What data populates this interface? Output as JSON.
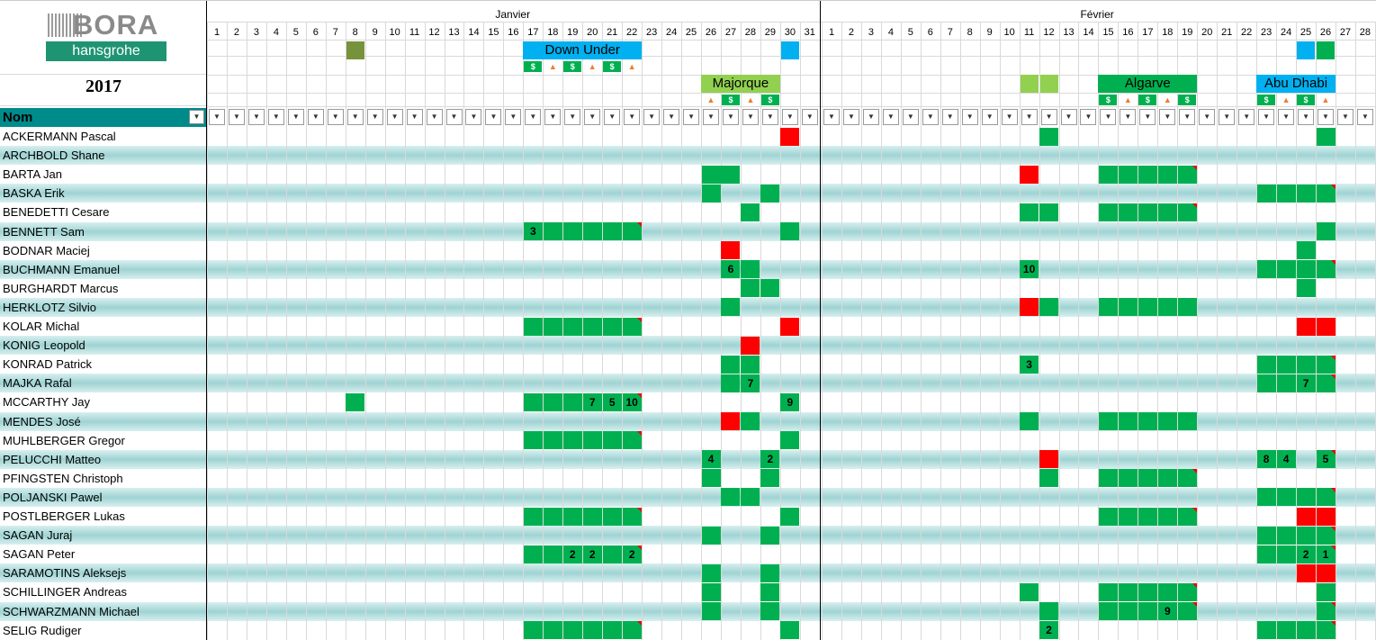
{
  "header": {
    "brand": "BORA",
    "sub_brand": "hansgrohe",
    "year": "2017",
    "name_column": "Nom",
    "filter_icon": "filter-dropdown-icon"
  },
  "months": [
    {
      "label": "Janvier",
      "days": 31,
      "start_x": 230
    },
    {
      "label": "Février",
      "days": 28,
      "start_x": 913
    }
  ],
  "events": [
    {
      "label": "Down Under",
      "month": 0,
      "from": 17,
      "to": 22,
      "color": "#00b0f0",
      "row": "top"
    },
    {
      "label": "Majorque",
      "month": 0,
      "from": 26,
      "to": 29,
      "color": "#92d050",
      "row": "bottom"
    },
    {
      "label": "Algarve",
      "month": 1,
      "from": 15,
      "to": 19,
      "color": "#00b050",
      "row": "bottom"
    },
    {
      "label": "Abu Dhabi",
      "month": 1,
      "from": 23,
      "to": 26,
      "color": "#00b0f0",
      "row": "bottom"
    }
  ],
  "colors": {
    "green": "#00b050",
    "red": "#ff0000",
    "header_teal": "#008b8b",
    "row_stripe": "#bfe4e4"
  },
  "riders": [
    {
      "name": "ACKERMANN Pascal"
    },
    {
      "name": "ARCHBOLD Shane"
    },
    {
      "name": "BARTA Jan"
    },
    {
      "name": "BASKA Erik"
    },
    {
      "name": "BENEDETTI Cesare"
    },
    {
      "name": "BENNETT Sam"
    },
    {
      "name": "BODNAR Maciej"
    },
    {
      "name": "BUCHMANN Emanuel"
    },
    {
      "name": "BURGHARDT Marcus"
    },
    {
      "name": "HERKLOTZ Silvio"
    },
    {
      "name": "KOLAR Michal"
    },
    {
      "name": "KONIG Leopold"
    },
    {
      "name": "KONRAD Patrick"
    },
    {
      "name": "MAJKA Rafal"
    },
    {
      "name": "MCCARTHY Jay"
    },
    {
      "name": "MENDES José"
    },
    {
      "name": "MUHLBERGER Gregor"
    },
    {
      "name": "PELUCCHI Matteo"
    },
    {
      "name": "PFINGSTEN Christoph"
    },
    {
      "name": "POLJANSKI Pawel"
    },
    {
      "name": "POSTLBERGER Lukas"
    },
    {
      "name": "SAGAN Juraj"
    },
    {
      "name": "SAGAN Peter"
    },
    {
      "name": "SARAMOTINS Aleksejs"
    },
    {
      "name": "SCHILLINGER Andreas"
    },
    {
      "name": "SCHWARZMANN Michael"
    },
    {
      "name": "SELIG Rudiger"
    }
  ],
  "cells": [
    [
      0,
      0,
      30,
      "r",
      ""
    ],
    [
      0,
      1,
      12,
      "g",
      ""
    ],
    [
      0,
      1,
      26,
      "g",
      ""
    ],
    [
      2,
      0,
      26,
      "g",
      ""
    ],
    [
      2,
      0,
      27,
      "g",
      ""
    ],
    [
      2,
      1,
      11,
      "r",
      ""
    ],
    [
      2,
      1,
      15,
      "g",
      ""
    ],
    [
      2,
      1,
      16,
      "g",
      ""
    ],
    [
      2,
      1,
      17,
      "g",
      ""
    ],
    [
      2,
      1,
      18,
      "g",
      ""
    ],
    [
      2,
      1,
      19,
      "gf",
      ""
    ],
    [
      3,
      0,
      26,
      "g",
      ""
    ],
    [
      3,
      0,
      29,
      "g",
      ""
    ],
    [
      3,
      1,
      23,
      "g",
      ""
    ],
    [
      3,
      1,
      24,
      "g",
      ""
    ],
    [
      3,
      1,
      25,
      "g",
      ""
    ],
    [
      3,
      1,
      26,
      "gf",
      ""
    ],
    [
      4,
      0,
      28,
      "g",
      ""
    ],
    [
      4,
      1,
      11,
      "g",
      ""
    ],
    [
      4,
      1,
      12,
      "g",
      ""
    ],
    [
      4,
      1,
      15,
      "g",
      ""
    ],
    [
      4,
      1,
      16,
      "g",
      ""
    ],
    [
      4,
      1,
      17,
      "g",
      ""
    ],
    [
      4,
      1,
      18,
      "g",
      ""
    ],
    [
      4,
      1,
      19,
      "gf",
      ""
    ],
    [
      5,
      0,
      17,
      "g",
      "3"
    ],
    [
      5,
      0,
      18,
      "g",
      ""
    ],
    [
      5,
      0,
      19,
      "g",
      ""
    ],
    [
      5,
      0,
      20,
      "g",
      ""
    ],
    [
      5,
      0,
      21,
      "g",
      ""
    ],
    [
      5,
      0,
      22,
      "gf",
      ""
    ],
    [
      5,
      0,
      30,
      "g",
      ""
    ],
    [
      5,
      1,
      26,
      "g",
      ""
    ],
    [
      6,
      0,
      27,
      "r",
      ""
    ],
    [
      6,
      1,
      25,
      "g",
      ""
    ],
    [
      7,
      0,
      27,
      "g",
      "6"
    ],
    [
      7,
      0,
      28,
      "g",
      ""
    ],
    [
      7,
      1,
      11,
      "g",
      "10"
    ],
    [
      7,
      1,
      23,
      "g",
      ""
    ],
    [
      7,
      1,
      24,
      "g",
      ""
    ],
    [
      7,
      1,
      25,
      "g",
      ""
    ],
    [
      7,
      1,
      26,
      "gf",
      ""
    ],
    [
      8,
      0,
      28,
      "g",
      ""
    ],
    [
      8,
      0,
      29,
      "g",
      ""
    ],
    [
      8,
      1,
      25,
      "g",
      ""
    ],
    [
      9,
      0,
      27,
      "g",
      ""
    ],
    [
      9,
      1,
      11,
      "r",
      ""
    ],
    [
      9,
      1,
      12,
      "g",
      ""
    ],
    [
      9,
      1,
      15,
      "g",
      ""
    ],
    [
      9,
      1,
      16,
      "g",
      ""
    ],
    [
      9,
      1,
      17,
      "g",
      ""
    ],
    [
      9,
      1,
      18,
      "g",
      ""
    ],
    [
      9,
      1,
      19,
      "g",
      ""
    ],
    [
      10,
      0,
      17,
      "g",
      ""
    ],
    [
      10,
      0,
      18,
      "g",
      ""
    ],
    [
      10,
      0,
      19,
      "g",
      ""
    ],
    [
      10,
      0,
      20,
      "g",
      ""
    ],
    [
      10,
      0,
      21,
      "g",
      ""
    ],
    [
      10,
      0,
      22,
      "gf",
      ""
    ],
    [
      10,
      0,
      30,
      "r",
      ""
    ],
    [
      10,
      1,
      25,
      "r",
      ""
    ],
    [
      10,
      1,
      26,
      "r",
      ""
    ],
    [
      11,
      0,
      28,
      "r",
      ""
    ],
    [
      12,
      0,
      27,
      "g",
      ""
    ],
    [
      12,
      0,
      28,
      "g",
      ""
    ],
    [
      12,
      1,
      11,
      "g",
      "3"
    ],
    [
      12,
      1,
      23,
      "g",
      ""
    ],
    [
      12,
      1,
      24,
      "g",
      ""
    ],
    [
      12,
      1,
      25,
      "g",
      ""
    ],
    [
      12,
      1,
      26,
      "gf",
      ""
    ],
    [
      13,
      0,
      27,
      "g",
      ""
    ],
    [
      13,
      0,
      28,
      "g",
      "7"
    ],
    [
      13,
      1,
      23,
      "g",
      ""
    ],
    [
      13,
      1,
      24,
      "g",
      ""
    ],
    [
      13,
      1,
      25,
      "g",
      "7"
    ],
    [
      13,
      1,
      26,
      "gf",
      ""
    ],
    [
      14,
      0,
      8,
      "g",
      ""
    ],
    [
      14,
      0,
      17,
      "g",
      ""
    ],
    [
      14,
      0,
      18,
      "g",
      ""
    ],
    [
      14,
      0,
      19,
      "g",
      ""
    ],
    [
      14,
      0,
      20,
      "g",
      "7"
    ],
    [
      14,
      0,
      21,
      "g",
      "5"
    ],
    [
      14,
      0,
      22,
      "gf",
      "10"
    ],
    [
      14,
      0,
      30,
      "g",
      "9"
    ],
    [
      15,
      0,
      27,
      "r",
      ""
    ],
    [
      15,
      0,
      28,
      "g",
      ""
    ],
    [
      15,
      1,
      11,
      "g",
      ""
    ],
    [
      15,
      1,
      15,
      "g",
      ""
    ],
    [
      15,
      1,
      16,
      "g",
      ""
    ],
    [
      15,
      1,
      17,
      "g",
      ""
    ],
    [
      15,
      1,
      18,
      "g",
      ""
    ],
    [
      15,
      1,
      19,
      "g",
      ""
    ],
    [
      16,
      0,
      17,
      "g",
      ""
    ],
    [
      16,
      0,
      18,
      "g",
      ""
    ],
    [
      16,
      0,
      19,
      "g",
      ""
    ],
    [
      16,
      0,
      20,
      "g",
      ""
    ],
    [
      16,
      0,
      21,
      "g",
      ""
    ],
    [
      16,
      0,
      22,
      "gf",
      ""
    ],
    [
      16,
      0,
      30,
      "g",
      ""
    ],
    [
      17,
      0,
      26,
      "g",
      "4"
    ],
    [
      17,
      0,
      29,
      "g",
      "2"
    ],
    [
      17,
      1,
      12,
      "r",
      ""
    ],
    [
      17,
      1,
      23,
      "g",
      "8"
    ],
    [
      17,
      1,
      24,
      "g",
      "4"
    ],
    [
      17,
      1,
      26,
      "gf",
      "5"
    ],
    [
      18,
      0,
      26,
      "g",
      ""
    ],
    [
      18,
      0,
      29,
      "g",
      ""
    ],
    [
      18,
      1,
      12,
      "g",
      ""
    ],
    [
      18,
      1,
      15,
      "g",
      ""
    ],
    [
      18,
      1,
      16,
      "g",
      ""
    ],
    [
      18,
      1,
      17,
      "g",
      ""
    ],
    [
      18,
      1,
      18,
      "g",
      ""
    ],
    [
      18,
      1,
      19,
      "gf",
      ""
    ],
    [
      19,
      0,
      27,
      "g",
      ""
    ],
    [
      19,
      0,
      28,
      "g",
      ""
    ],
    [
      19,
      1,
      23,
      "g",
      ""
    ],
    [
      19,
      1,
      24,
      "g",
      ""
    ],
    [
      19,
      1,
      25,
      "g",
      ""
    ],
    [
      19,
      1,
      26,
      "gf",
      ""
    ],
    [
      20,
      0,
      17,
      "g",
      ""
    ],
    [
      20,
      0,
      18,
      "g",
      ""
    ],
    [
      20,
      0,
      19,
      "g",
      ""
    ],
    [
      20,
      0,
      20,
      "g",
      ""
    ],
    [
      20,
      0,
      21,
      "g",
      ""
    ],
    [
      20,
      0,
      22,
      "gf",
      ""
    ],
    [
      20,
      0,
      30,
      "g",
      ""
    ],
    [
      20,
      1,
      15,
      "g",
      ""
    ],
    [
      20,
      1,
      16,
      "g",
      ""
    ],
    [
      20,
      1,
      17,
      "g",
      ""
    ],
    [
      20,
      1,
      18,
      "g",
      ""
    ],
    [
      20,
      1,
      19,
      "gf",
      ""
    ],
    [
      20,
      1,
      25,
      "r",
      ""
    ],
    [
      20,
      1,
      26,
      "r",
      ""
    ],
    [
      21,
      0,
      26,
      "g",
      ""
    ],
    [
      21,
      0,
      29,
      "g",
      ""
    ],
    [
      21,
      1,
      23,
      "g",
      ""
    ],
    [
      21,
      1,
      24,
      "g",
      ""
    ],
    [
      21,
      1,
      25,
      "g",
      ""
    ],
    [
      21,
      1,
      26,
      "gf",
      ""
    ],
    [
      22,
      0,
      17,
      "g",
      ""
    ],
    [
      22,
      0,
      18,
      "g",
      ""
    ],
    [
      22,
      0,
      19,
      "g",
      "2"
    ],
    [
      22,
      0,
      20,
      "g",
      "2"
    ],
    [
      22,
      0,
      21,
      "g",
      ""
    ],
    [
      22,
      0,
      22,
      "gf",
      "2"
    ],
    [
      22,
      1,
      23,
      "g",
      ""
    ],
    [
      22,
      1,
      24,
      "g",
      ""
    ],
    [
      22,
      1,
      25,
      "g",
      "2"
    ],
    [
      22,
      1,
      26,
      "gf",
      "1"
    ],
    [
      23,
      0,
      26,
      "g",
      ""
    ],
    [
      23,
      0,
      29,
      "g",
      ""
    ],
    [
      23,
      1,
      25,
      "r",
      ""
    ],
    [
      23,
      1,
      26,
      "r",
      ""
    ],
    [
      24,
      0,
      26,
      "g",
      ""
    ],
    [
      24,
      0,
      29,
      "g",
      ""
    ],
    [
      24,
      1,
      11,
      "g",
      ""
    ],
    [
      24,
      1,
      15,
      "g",
      ""
    ],
    [
      24,
      1,
      16,
      "g",
      ""
    ],
    [
      24,
      1,
      17,
      "g",
      ""
    ],
    [
      24,
      1,
      18,
      "g",
      ""
    ],
    [
      24,
      1,
      19,
      "gf",
      ""
    ],
    [
      24,
      1,
      26,
      "g",
      ""
    ],
    [
      25,
      0,
      26,
      "g",
      ""
    ],
    [
      25,
      0,
      29,
      "g",
      ""
    ],
    [
      25,
      1,
      12,
      "g",
      ""
    ],
    [
      25,
      1,
      15,
      "g",
      ""
    ],
    [
      25,
      1,
      16,
      "g",
      ""
    ],
    [
      25,
      1,
      17,
      "g",
      ""
    ],
    [
      25,
      1,
      18,
      "g",
      "9"
    ],
    [
      25,
      1,
      19,
      "gf",
      ""
    ],
    [
      25,
      1,
      26,
      "gf",
      ""
    ],
    [
      26,
      0,
      17,
      "g",
      ""
    ],
    [
      26,
      0,
      18,
      "g",
      ""
    ],
    [
      26,
      0,
      19,
      "g",
      ""
    ],
    [
      26,
      0,
      20,
      "g",
      ""
    ],
    [
      26,
      0,
      21,
      "g",
      ""
    ],
    [
      26,
      0,
      22,
      "gf",
      ""
    ],
    [
      26,
      0,
      30,
      "g",
      ""
    ],
    [
      26,
      1,
      12,
      "g",
      "2"
    ],
    [
      26,
      1,
      23,
      "g",
      ""
    ],
    [
      26,
      1,
      24,
      "g",
      ""
    ],
    [
      26,
      1,
      25,
      "g",
      ""
    ],
    [
      26,
      1,
      26,
      "gf",
      ""
    ]
  ]
}
